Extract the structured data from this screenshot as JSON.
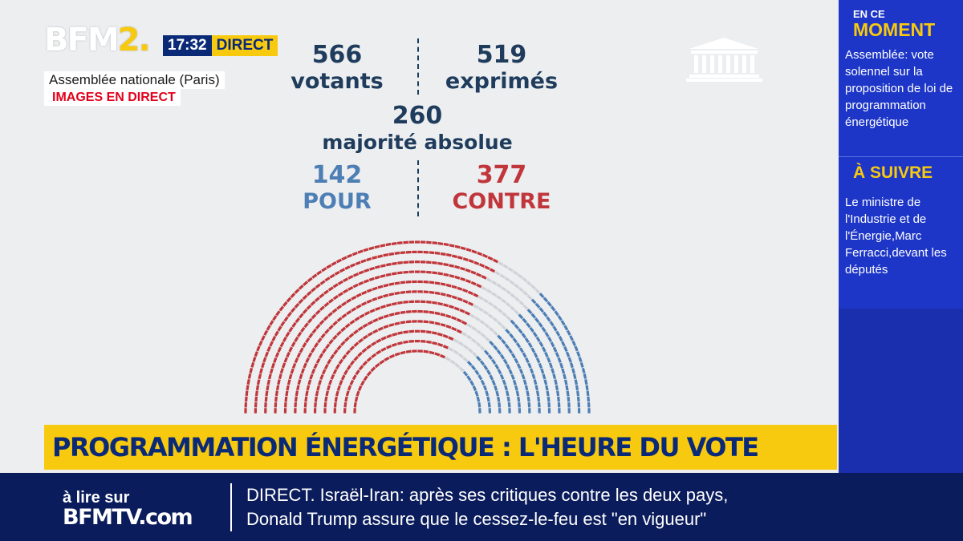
{
  "channel": {
    "logo_main": "BFM",
    "logo_two": "2.",
    "time": "17:32",
    "live_label": "DIRECT"
  },
  "location": {
    "place": "Assemblée nationale (Paris)",
    "live_images": "IMAGES EN DIRECT"
  },
  "vote": {
    "votants_num": "566",
    "votants_label": "votants",
    "exprimes_num": "519",
    "exprimes_label": "exprimés",
    "majorite_num": "260",
    "majorite_label": "majorité absolue",
    "pour_num": "142",
    "pour_label": "POUR",
    "contre_num": "377",
    "contre_label": "CONTRE"
  },
  "hemicycle": {
    "pour": 142,
    "contre": 377,
    "colors": {
      "contre": "#c0363a",
      "pour": "#4d7eb4",
      "absent": "#cfd3d8"
    }
  },
  "banner": {
    "title": "PROGRAMMATION ÉNERGÉTIQUE : L'HEURE DU VOTE"
  },
  "sidebar": {
    "now_label_small": "EN CE",
    "now_label_big": "MOMENT",
    "now_text": "Assemblée: vote solennel sur la proposition de loi de programmation énergétique",
    "next_label": "À SUIVRE",
    "next_text": "Le ministre de l'Industrie et de l'Énergie,Marc Ferracci,devant les députés"
  },
  "ticker": {
    "alire": "à lire sur",
    "site": "BFMTV.com",
    "line1": "DIRECT. Israël-Iran: après ses critiques contre les deux pays,",
    "line2": "Donald Trump assure que le cessez-le-feu est \"en vigueur\""
  }
}
